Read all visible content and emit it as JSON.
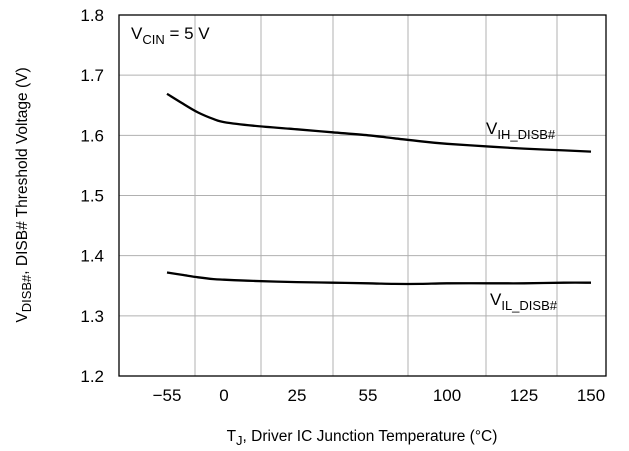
{
  "chart_data": {
    "type": "line",
    "x_categories": [
      "−55",
      "0",
      "25",
      "55",
      "100",
      "125",
      "150"
    ],
    "x_domain": [
      -55,
      150
    ],
    "ylim": [
      1.2,
      1.8
    ],
    "y_ticks": [
      "1.2",
      "1.3",
      "1.4",
      "1.5",
      "1.6",
      "1.7",
      "1.8"
    ],
    "grid": true,
    "xlabel": {
      "prefix": "T",
      "sub": "J",
      "rest": ", Driver IC Junction Temperature (°C)"
    },
    "ylabel": {
      "prefix": "V",
      "sub": "DISB#",
      "rest": ", DISB# Threshold Voltage (V)"
    },
    "annotation": {
      "prefix": "V",
      "sub": "CIN",
      "rest": " = 5 V"
    },
    "series": [
      {
        "name": {
          "prefix": "V",
          "sub": "IH_DISB#"
        },
        "x": [
          -55,
          -40,
          -25,
          -10,
          0,
          10,
          25,
          40,
          55,
          70,
          85,
          100,
          115,
          125,
          140,
          150
        ],
        "y": [
          1.669,
          1.653,
          1.638,
          1.627,
          1.622,
          1.616,
          1.61,
          1.605,
          1.6,
          1.595,
          1.59,
          1.586,
          1.581,
          1.578,
          1.575,
          1.573
        ]
      },
      {
        "name": {
          "prefix": "V",
          "sub": "IL_DISB#"
        },
        "x": [
          -55,
          -40,
          -25,
          -10,
          0,
          10,
          25,
          40,
          55,
          70,
          85,
          100,
          115,
          125,
          140,
          150
        ],
        "y": [
          1.372,
          1.368,
          1.364,
          1.361,
          1.36,
          1.358,
          1.356,
          1.355,
          1.354,
          1.353,
          1.353,
          1.354,
          1.354,
          1.354,
          1.355,
          1.355
        ]
      }
    ]
  }
}
